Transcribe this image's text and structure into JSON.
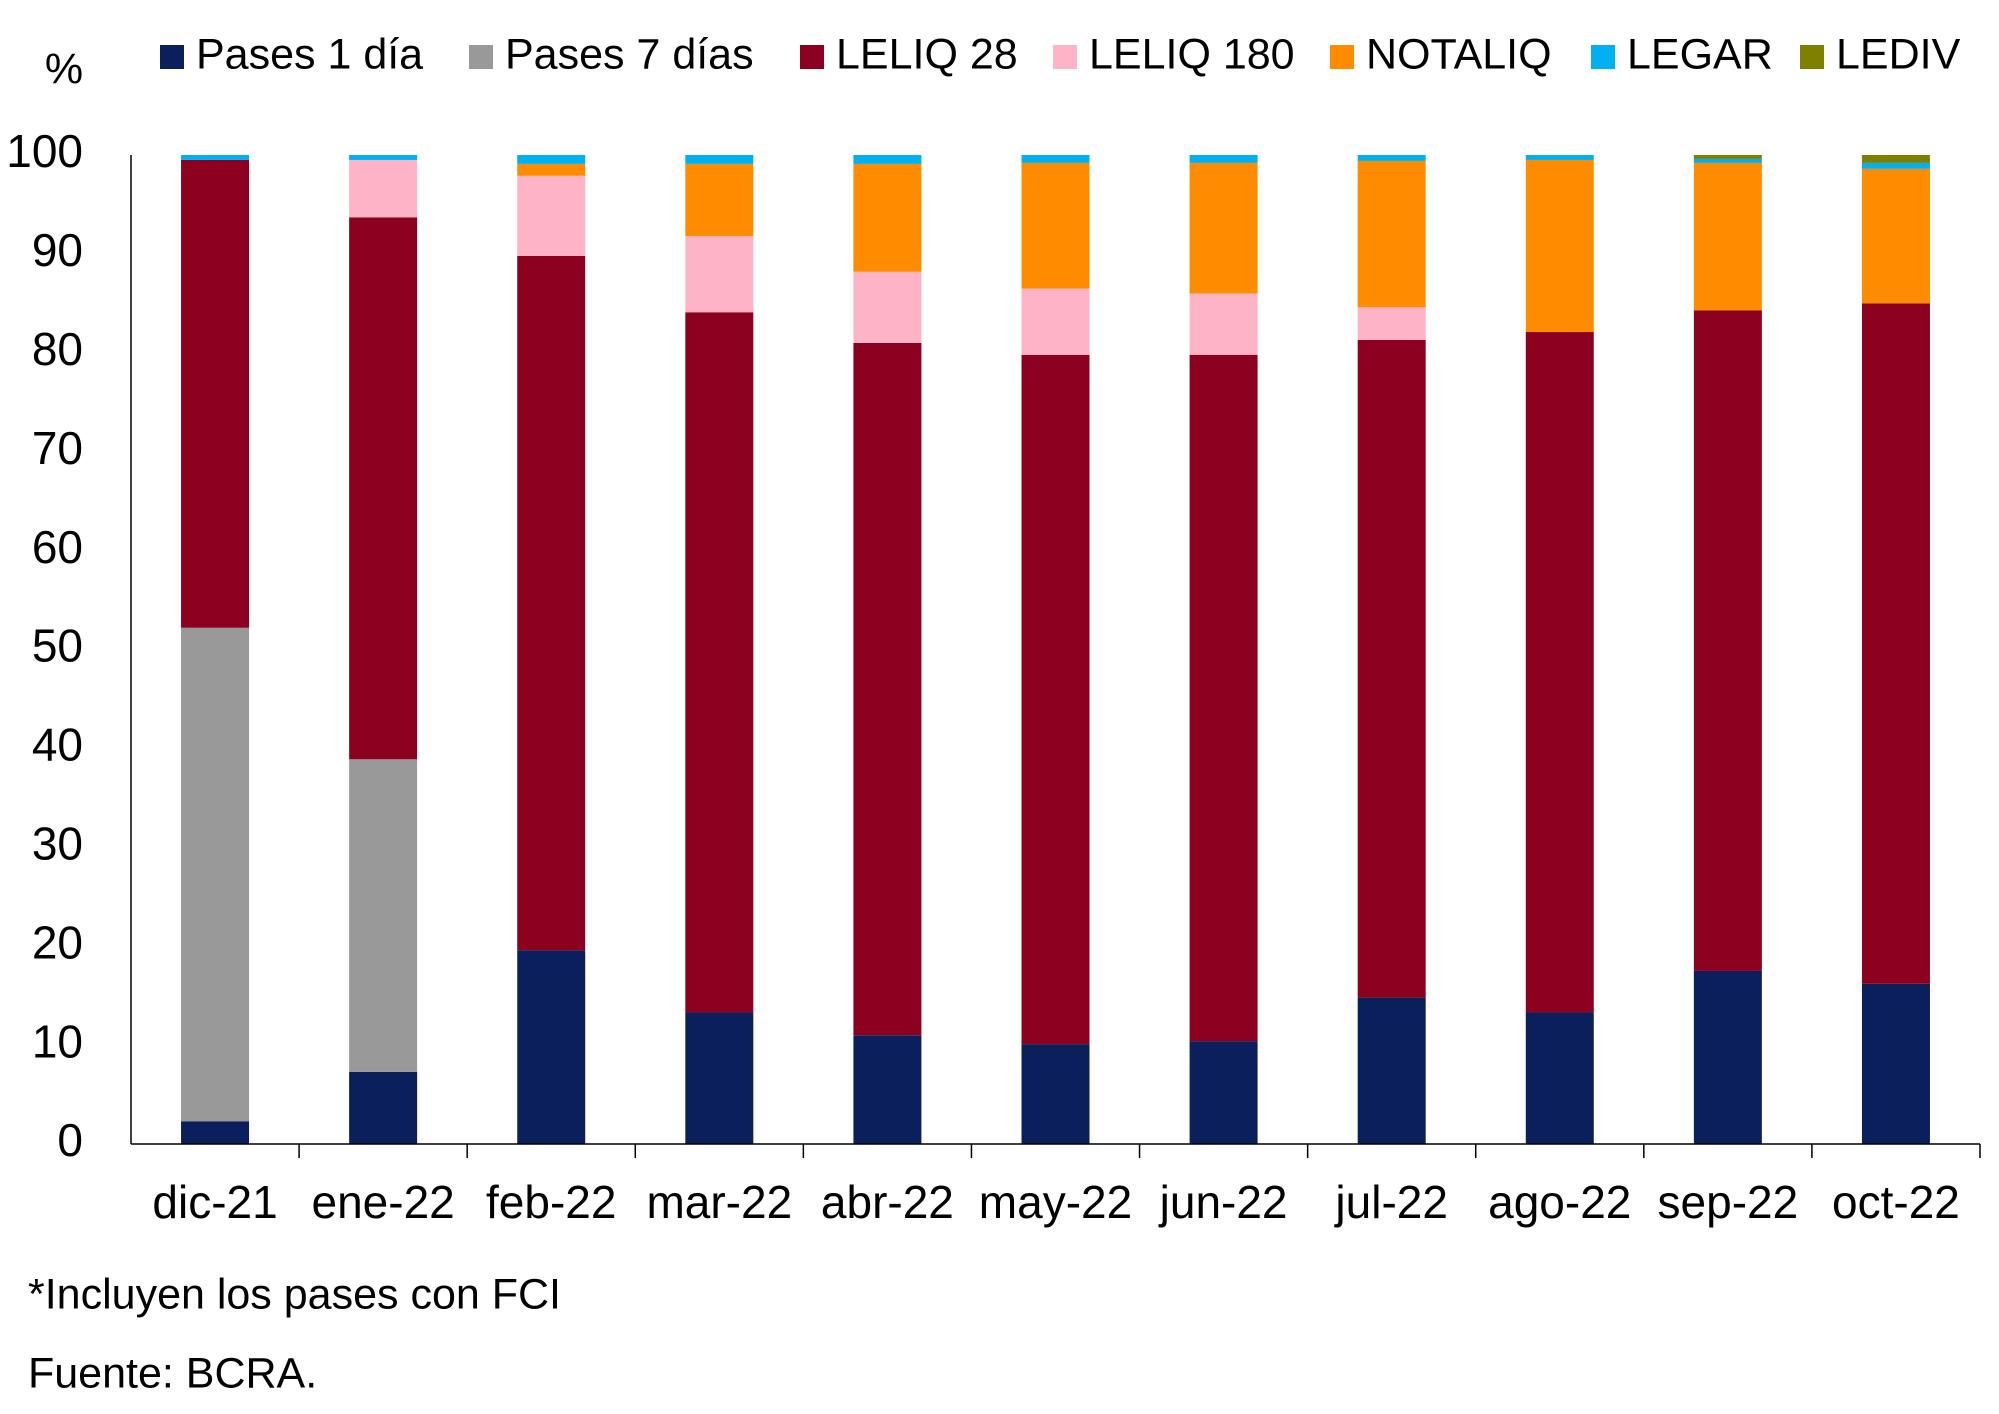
{
  "chart_data": {
    "type": "stacked_bar",
    "ylabel": "%",
    "categories": [
      "dic-21",
      "ene-22",
      "feb-22",
      "mar-22",
      "abr-22",
      "may-22",
      "jun-22",
      "jul-22",
      "ago-22",
      "sep-22",
      "oct-22"
    ],
    "series": [
      {
        "name": "Pases 1 día",
        "color": "#0b1f5c",
        "values": [
          2.3,
          7.3,
          19.6,
          13.3,
          11.0,
          10.1,
          10.4,
          14.8,
          13.3,
          17.5,
          16.2
        ]
      },
      {
        "name": "Pases 7 días",
        "color": "#999999",
        "values": [
          49.9,
          31.6,
          0,
          0,
          0,
          0,
          0,
          0,
          0,
          0,
          0
        ]
      },
      {
        "name": "LELIQ 28",
        "color": "#8c0020",
        "values": [
          47.3,
          54.8,
          70.2,
          70.8,
          70.0,
          69.7,
          69.4,
          66.5,
          68.8,
          66.8,
          68.8
        ]
      },
      {
        "name": "LELIQ 180",
        "color": "#ffb3c6",
        "values": [
          0,
          5.8,
          8.1,
          7.7,
          7.2,
          6.7,
          6.2,
          3.3,
          0,
          0,
          0
        ]
      },
      {
        "name": "NOTALIQ",
        "color": "#ff8c00",
        "values": [
          0,
          0,
          1.2,
          7.3,
          10.9,
          12.7,
          13.2,
          14.8,
          17.4,
          14.9,
          13.6
        ]
      },
      {
        "name": "LEGAR",
        "color": "#00b0f0",
        "values": [
          0.5,
          0.5,
          0.9,
          0.9,
          0.9,
          0.8,
          0.8,
          0.6,
          0.5,
          0.4,
          0.6
        ]
      },
      {
        "name": "LEDIV",
        "color": "#808000",
        "values": [
          0,
          0,
          0,
          0,
          0,
          0,
          0,
          0,
          0,
          0.4,
          0.8
        ]
      }
    ],
    "ylim": [
      0,
      100
    ],
    "yticks": [
      0,
      10,
      20,
      30,
      40,
      50,
      60,
      70,
      80,
      90,
      100
    ],
    "notes": [
      "*Incluyen los pases con FCI",
      "Fuente: BCRA."
    ]
  }
}
